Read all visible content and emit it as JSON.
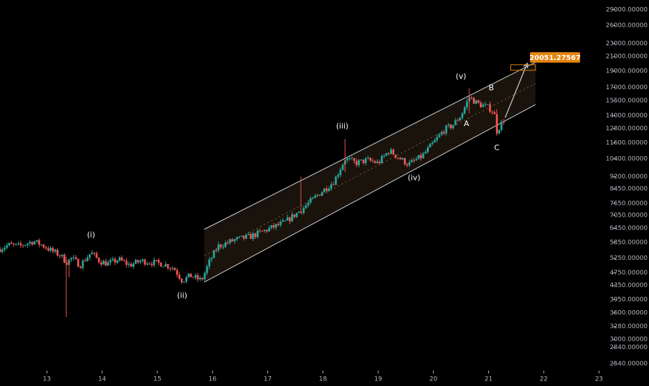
{
  "colors": {
    "background": "#000000",
    "axis_text": "#b2b5be",
    "bull": "#26a69a",
    "bear": "#ef5350",
    "channel_line": "#d1d4dc",
    "channel_fill": "#3a2a1a",
    "target_box": "#e5850f",
    "target_text": "#ffffff",
    "label": "#ffffff"
  },
  "chart_data": {
    "type": "candlestick",
    "title": "",
    "xlabel": "",
    "ylabel": "",
    "y_scale": "log",
    "ylim": [
      2420,
      31000
    ],
    "xlim": [
      12.15,
      23.25
    ],
    "y_ticks": [
      {
        "value": 2540,
        "label": "2540.00000"
      },
      {
        "value": 2840,
        "label": "2840.00000"
      },
      {
        "value": 3000,
        "label": "3000.00000"
      },
      {
        "value": 3280,
        "label": "3280.00000"
      },
      {
        "value": 3600,
        "label": "3600.00000"
      },
      {
        "value": 3950,
        "label": "3950.00000"
      },
      {
        "value": 4350,
        "label": "4350.00000"
      },
      {
        "value": 4750,
        "label": "4750.00000"
      },
      {
        "value": 5250,
        "label": "5250.00000"
      },
      {
        "value": 5850,
        "label": "5850.00000"
      },
      {
        "value": 6450,
        "label": "6450.00000"
      },
      {
        "value": 7050,
        "label": "7050.00000"
      },
      {
        "value": 7650,
        "label": "7650.00000"
      },
      {
        "value": 8450,
        "label": "8450.00000"
      },
      {
        "value": 9200,
        "label": "9200.00000"
      },
      {
        "value": 10400,
        "label": "10400.00000"
      },
      {
        "value": 11600,
        "label": "11600.00000"
      },
      {
        "value": 12800,
        "label": "12800.00000"
      },
      {
        "value": 14000,
        "label": "14000.00000"
      },
      {
        "value": 15500,
        "label": "15500.00000"
      },
      {
        "value": 17000,
        "label": "17000.00000"
      },
      {
        "value": 19000,
        "label": "19000.00000"
      },
      {
        "value": 21000,
        "label": "21000.00000"
      },
      {
        "value": 23000,
        "label": "23000.00000"
      },
      {
        "value": 26000,
        "label": "26000.00000"
      },
      {
        "value": 29000,
        "label": "29000.00000"
      }
    ],
    "x_ticks": [
      {
        "value": 13,
        "label": "13"
      },
      {
        "value": 14,
        "label": "14"
      },
      {
        "value": 15,
        "label": "15"
      },
      {
        "value": 16,
        "label": "16"
      },
      {
        "value": 17,
        "label": "17"
      },
      {
        "value": 18,
        "label": "18"
      },
      {
        "value": 19,
        "label": "19"
      },
      {
        "value": 20,
        "label": "20"
      },
      {
        "value": 21,
        "label": "21"
      },
      {
        "value": 22,
        "label": "22"
      },
      {
        "value": 23,
        "label": "23"
      }
    ],
    "price_path": [
      [
        12.15,
        5600
      ],
      [
        12.3,
        5750
      ],
      [
        12.5,
        5700
      ],
      [
        12.75,
        5900
      ],
      [
        12.95,
        5700
      ],
      [
        13.1,
        5500
      ],
      [
        13.25,
        5350
      ],
      [
        13.35,
        5100
      ],
      [
        13.45,
        5250
      ],
      [
        13.6,
        5000
      ],
      [
        13.8,
        5450
      ],
      [
        13.95,
        5150
      ],
      [
        14.1,
        5050
      ],
      [
        14.3,
        5200
      ],
      [
        14.5,
        5000
      ],
      [
        14.7,
        5150
      ],
      [
        14.9,
        5100
      ],
      [
        15.1,
        5050
      ],
      [
        15.3,
        4900
      ],
      [
        15.45,
        4500
      ],
      [
        15.6,
        4650
      ],
      [
        15.8,
        4500
      ],
      [
        15.95,
        5150
      ],
      [
        16.1,
        5700
      ],
      [
        16.4,
        5950
      ],
      [
        16.7,
        6100
      ],
      [
        17.0,
        6400
      ],
      [
        17.3,
        6700
      ],
      [
        17.6,
        7300
      ],
      [
        17.9,
        8100
      ],
      [
        18.2,
        8900
      ],
      [
        18.4,
        10400
      ],
      [
        18.6,
        10100
      ],
      [
        18.8,
        10300
      ],
      [
        19.0,
        10100
      ],
      [
        19.2,
        11000
      ],
      [
        19.4,
        10400
      ],
      [
        19.55,
        10000
      ],
      [
        19.8,
        10600
      ],
      [
        20.0,
        11600
      ],
      [
        20.2,
        12700
      ],
      [
        20.35,
        13100
      ],
      [
        20.5,
        14000
      ],
      [
        20.65,
        15900
      ],
      [
        20.8,
        15200
      ],
      [
        21.0,
        14800
      ],
      [
        21.1,
        14300
      ],
      [
        21.15,
        12600
      ],
      [
        21.3,
        13800
      ]
    ],
    "wicks": [
      {
        "x": 13.35,
        "low": 3500,
        "high": 5300
      },
      {
        "x": 13.4,
        "low": 4600,
        "high": 5200
      },
      {
        "x": 18.4,
        "low": 9500,
        "high": 11900
      },
      {
        "x": 20.65,
        "low": 14200,
        "high": 16900
      },
      {
        "x": 21.15,
        "low": 12400,
        "high": 14600
      },
      {
        "x": 17.6,
        "low": 7200,
        "high": 9200
      }
    ],
    "channel": {
      "upper": [
        [
          15.85,
          6400
        ],
        [
          21.85,
          20200
        ]
      ],
      "lower": [
        [
          15.85,
          4450
        ],
        [
          21.85,
          15100
        ]
      ]
    },
    "target": {
      "label": "20051.27567",
      "value": 20051.27567,
      "arrow_from": [
        21.3,
        13800
      ],
      "arrow_to": [
        21.7,
        20051.27567
      ]
    },
    "annotations": [
      {
        "text": "(i)",
        "x": 13.8,
        "y": 6150
      },
      {
        "text": "(ii)",
        "x": 15.45,
        "y": 4050
      },
      {
        "text": "(iii)",
        "x": 18.35,
        "y": 13000
      },
      {
        "text": "(iv)",
        "x": 19.65,
        "y": 9100
      },
      {
        "text": "(v)",
        "x": 20.5,
        "y": 18300
      },
      {
        "text": "A",
        "x": 20.6,
        "y": 13200
      },
      {
        "text": "B",
        "x": 21.05,
        "y": 16900
      },
      {
        "text": "C",
        "x": 21.15,
        "y": 11200
      }
    ]
  }
}
